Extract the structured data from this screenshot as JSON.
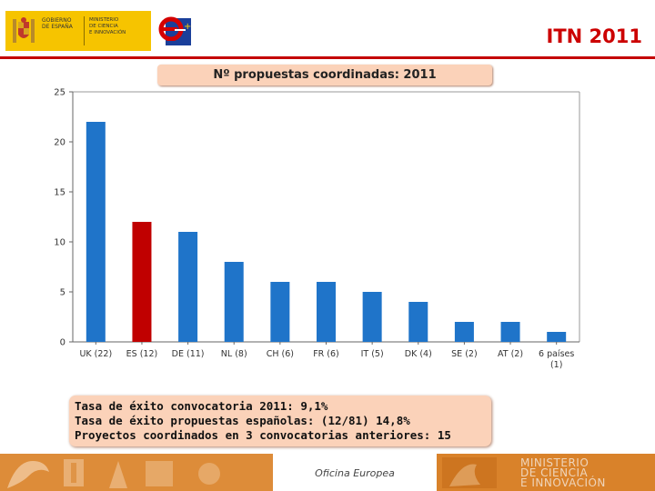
{
  "header": {
    "title": "ITN 2011",
    "gov_text": [
      "GOBIERNO",
      "DE ESPAÑA"
    ],
    "ministry_text": [
      "MINISTERIO",
      "DE CIENCIA",
      "E INNOVACIÓN"
    ],
    "brand_color": "#c40000"
  },
  "chart_data": {
    "type": "bar",
    "title": "Nº propuestas coordinadas: 2011",
    "categories": [
      "UK (22)",
      "ES (12)",
      "DE (11)",
      "NL (8)",
      "CH (6)",
      "FR (6)",
      "IT (5)",
      "DK (4)",
      "SE (2)",
      "AT (2)",
      "6 países (1)"
    ],
    "values": [
      22,
      12,
      11,
      8,
      6,
      6,
      5,
      4,
      2,
      2,
      1
    ],
    "highlight_index": 1,
    "bar_color": "#1f74c9",
    "highlight_color": "#c00000",
    "ylim": [
      0,
      25
    ],
    "yticks": [
      0,
      5,
      10,
      15,
      20,
      25
    ],
    "grid": false
  },
  "info": {
    "lines": [
      "Tasa de éxito convocatoria 2011: 9,1%",
      "Tasa de éxito propuestas españolas: (12/81) 14,8%",
      "Proyectos coordinados en 3 convocatorias anteriores: 15"
    ]
  },
  "footer": {
    "center_text": "Oficina Europea",
    "right_text": [
      "MINISTERIO",
      "DE CIENCIA",
      "E INNOVACIÓN"
    ]
  }
}
